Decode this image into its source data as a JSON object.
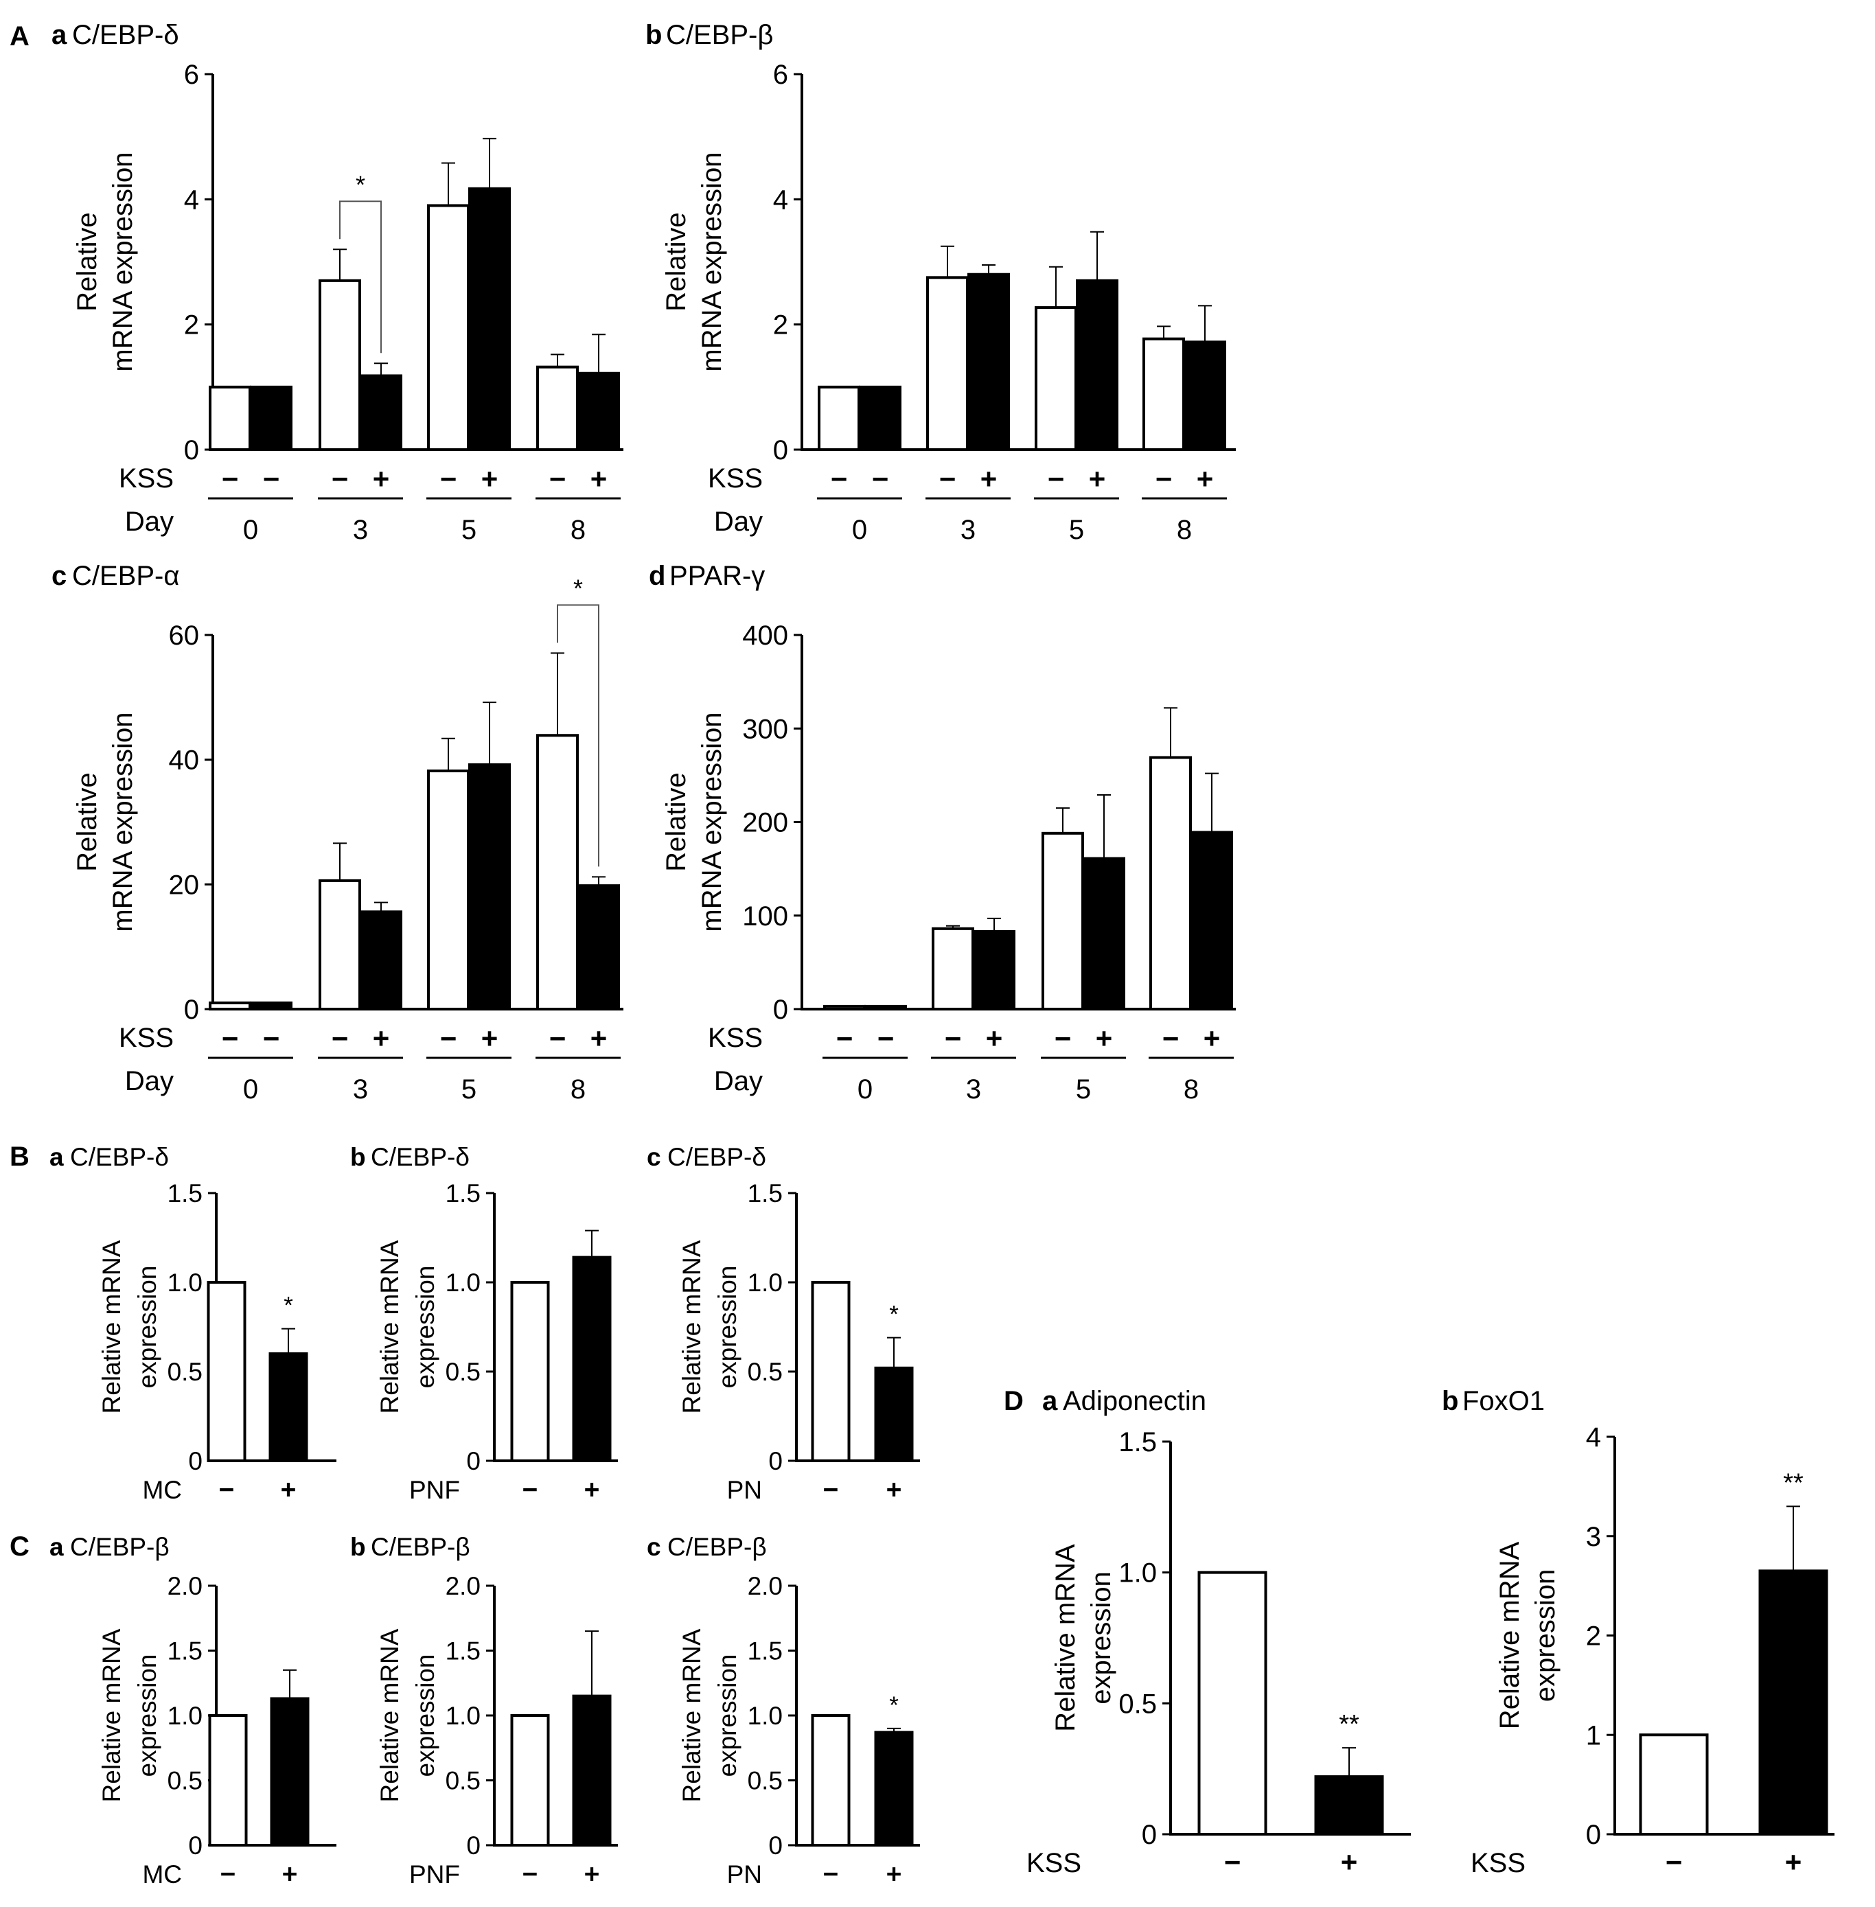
{
  "figure": {
    "group_labels": {
      "A": "A",
      "B": "B",
      "C": "C",
      "D": "D"
    },
    "kss_label": "KSS",
    "day_label": "Day",
    "minus": "−",
    "plus": "+",
    "significance": {
      "single": "*",
      "double": "**"
    }
  },
  "chart_data": [
    {
      "id": "Aa",
      "type": "bar",
      "layout": "timecourse",
      "panel_label": "a",
      "title": "C/EBP-δ",
      "ylabel": [
        "Relative",
        "mRNA expression"
      ],
      "ylim": [
        0,
        6
      ],
      "yticks": [
        "0",
        "2",
        "4",
        "6"
      ],
      "days": [
        "0",
        "3",
        "5",
        "8"
      ],
      "kss_signs": [
        [
          "−",
          "−"
        ],
        [
          "−",
          "+"
        ],
        [
          "−",
          "+"
        ],
        [
          "−",
          "+"
        ]
      ],
      "series": [
        {
          "name": "KSS −",
          "fill": "#ffffff",
          "values": [
            1.0,
            2.7,
            3.9,
            1.32
          ],
          "errors": [
            0,
            0.5,
            0.68,
            0.2
          ]
        },
        {
          "name": "KSS +",
          "fill": "#000000",
          "values": [
            1.0,
            1.18,
            4.17,
            1.22
          ],
          "errors": [
            0,
            0.2,
            0.8,
            0.62
          ]
        }
      ],
      "significance": [
        {
          "group": 1,
          "label": "*"
        }
      ]
    },
    {
      "id": "Ab",
      "type": "bar",
      "layout": "timecourse",
      "panel_label": "b",
      "title": "C/EBP-β",
      "ylabel": [
        "Relative",
        "mRNA expression"
      ],
      "ylim": [
        0,
        6
      ],
      "yticks": [
        "0",
        "2",
        "4",
        "6"
      ],
      "days": [
        "0",
        "3",
        "5",
        "8"
      ],
      "kss_signs": [
        [
          "−",
          "−"
        ],
        [
          "−",
          "+"
        ],
        [
          "−",
          "+"
        ],
        [
          "−",
          "+"
        ]
      ],
      "series": [
        {
          "name": "KSS −",
          "fill": "#ffffff",
          "values": [
            1.0,
            2.75,
            2.27,
            1.77
          ],
          "errors": [
            0,
            0.5,
            0.65,
            0.2
          ]
        },
        {
          "name": "KSS +",
          "fill": "#000000",
          "values": [
            1.0,
            2.8,
            2.7,
            1.72
          ],
          "errors": [
            0,
            0.15,
            0.78,
            0.58
          ]
        }
      ],
      "significance": []
    },
    {
      "id": "Ac",
      "type": "bar",
      "layout": "timecourse",
      "panel_label": "c",
      "title": "C/EBP-α",
      "ylabel": [
        "Relative",
        "mRNA expression"
      ],
      "ylim": [
        0,
        60
      ],
      "yticks": [
        "0",
        "20",
        "40",
        "60"
      ],
      "days": [
        "0",
        "3",
        "5",
        "8"
      ],
      "kss_signs": [
        [
          "−",
          "−"
        ],
        [
          "−",
          "+"
        ],
        [
          "−",
          "+"
        ],
        [
          "−",
          "+"
        ]
      ],
      "series": [
        {
          "name": "KSS −",
          "fill": "#ffffff",
          "values": [
            1.0,
            20.6,
            38.2,
            43.9
          ],
          "errors": [
            0,
            6.0,
            5.2,
            13.2
          ]
        },
        {
          "name": "KSS +",
          "fill": "#000000",
          "values": [
            1.0,
            15.6,
            39.2,
            19.8
          ],
          "errors": [
            0,
            1.5,
            10.0,
            1.4
          ]
        }
      ],
      "significance": [
        {
          "group": 3,
          "label": "*"
        }
      ]
    },
    {
      "id": "Ad",
      "type": "bar",
      "layout": "timecourse",
      "panel_label": "d",
      "title": "PPAR-γ",
      "ylabel": [
        "Relative",
        "mRNA expression"
      ],
      "ylim": [
        0,
        400
      ],
      "yticks": [
        "0",
        "100",
        "200",
        "300",
        "400"
      ],
      "days": [
        "0",
        "3",
        "5",
        "8"
      ],
      "kss_signs": [
        [
          "−",
          "−"
        ],
        [
          "−",
          "+"
        ],
        [
          "−",
          "+"
        ],
        [
          "−",
          "+"
        ]
      ],
      "series": [
        {
          "name": "KSS −",
          "fill": "#ffffff",
          "values": [
            3,
            86,
            188,
            269
          ],
          "errors": [
            0,
            3,
            27,
            53
          ]
        },
        {
          "name": "KSS +",
          "fill": "#000000",
          "values": [
            3,
            83,
            161,
            189
          ],
          "errors": [
            0,
            14,
            68,
            63
          ]
        }
      ],
      "significance": []
    },
    {
      "id": "Ba",
      "type": "bar",
      "layout": "pair",
      "panel_label": "a",
      "title": "C/EBP-δ",
      "ylabel": [
        "Relative mRNA",
        "expression"
      ],
      "ylim": [
        0,
        1.5
      ],
      "yticks": [
        "0",
        "0.5",
        "1.0",
        "1.5"
      ],
      "treatment": "MC",
      "categories": [
        "−",
        "+"
      ],
      "values": [
        1.0,
        0.6
      ],
      "errors": [
        0,
        0.14
      ],
      "fills": [
        "#ffffff",
        "#000000"
      ],
      "significance": {
        "index": 1,
        "label": "*"
      }
    },
    {
      "id": "Bb",
      "type": "bar",
      "layout": "pair",
      "panel_label": "b",
      "title": "C/EBP-δ",
      "ylabel": [
        "Relative mRNA",
        "expression"
      ],
      "ylim": [
        0,
        1.5
      ],
      "yticks": [
        "0",
        "0.5",
        "1.0",
        "1.5"
      ],
      "treatment": "PNF",
      "categories": [
        "−",
        "+"
      ],
      "values": [
        1.0,
        1.14
      ],
      "errors": [
        0,
        0.15
      ],
      "fills": [
        "#ffffff",
        "#000000"
      ],
      "significance": null
    },
    {
      "id": "Bc",
      "type": "bar",
      "layout": "pair",
      "panel_label": "c",
      "title": "C/EBP-δ",
      "ylabel": [
        "Relative mRNA",
        "expression"
      ],
      "ylim": [
        0,
        1.5
      ],
      "yticks": [
        "0",
        "0.5",
        "1.0",
        "1.5"
      ],
      "treatment": "PN",
      "categories": [
        "−",
        "+"
      ],
      "values": [
        1.0,
        0.52
      ],
      "errors": [
        0,
        0.17
      ],
      "fills": [
        "#ffffff",
        "#000000"
      ],
      "significance": {
        "index": 1,
        "label": "*"
      }
    },
    {
      "id": "Ca",
      "type": "bar",
      "layout": "pair",
      "panel_label": "a",
      "title": "C/EBP-β",
      "ylabel": [
        "Relative mRNA",
        "expression"
      ],
      "ylim": [
        0,
        2.0
      ],
      "yticks": [
        "0",
        "0.5",
        "1.0",
        "1.5",
        "2.0"
      ],
      "treatment": "MC",
      "categories": [
        "−",
        "+"
      ],
      "values": [
        1.0,
        1.13
      ],
      "errors": [
        0,
        0.22
      ],
      "fills": [
        "#ffffff",
        "#000000"
      ],
      "significance": null
    },
    {
      "id": "Cb",
      "type": "bar",
      "layout": "pair",
      "panel_label": "b",
      "title": "C/EBP-β",
      "ylabel": [
        "Relative mRNA",
        "expression"
      ],
      "ylim": [
        0,
        2.0
      ],
      "yticks": [
        "0",
        "0.5",
        "1.0",
        "1.5",
        "2.0"
      ],
      "treatment": "PNF",
      "categories": [
        "−",
        "+"
      ],
      "values": [
        1.0,
        1.15
      ],
      "errors": [
        0,
        0.5
      ],
      "fills": [
        "#ffffff",
        "#000000"
      ],
      "significance": null
    },
    {
      "id": "Cc",
      "type": "bar",
      "layout": "pair",
      "panel_label": "c",
      "title": "C/EBP-β",
      "ylabel": [
        "Relative mRNA",
        "expression"
      ],
      "ylim": [
        0,
        2.0
      ],
      "yticks": [
        "0",
        "0.5",
        "1.0",
        "1.5",
        "2.0"
      ],
      "treatment": "PN",
      "categories": [
        "−",
        "+"
      ],
      "values": [
        1.0,
        0.87
      ],
      "errors": [
        0,
        0.03
      ],
      "fills": [
        "#ffffff",
        "#000000"
      ],
      "significance": {
        "index": 1,
        "label": "*"
      }
    },
    {
      "id": "Da",
      "type": "bar",
      "layout": "pair",
      "panel_label": "a",
      "title": "Adiponectin",
      "ylabel": [
        "Relative mRNA",
        "expression"
      ],
      "ylim": [
        0,
        1.5
      ],
      "yticks": [
        "0",
        "0.5",
        "1.0",
        "1.5"
      ],
      "treatment": "KSS",
      "categories": [
        "−",
        "+"
      ],
      "values": [
        1.0,
        0.22
      ],
      "errors": [
        0,
        0.11
      ],
      "fills": [
        "#ffffff",
        "#000000"
      ],
      "significance": {
        "index": 1,
        "label": "**"
      }
    },
    {
      "id": "Db",
      "type": "bar",
      "layout": "pair",
      "panel_label": "b",
      "title": "FoxO1",
      "ylabel": [
        "Relative mRNA",
        "expression"
      ],
      "ylim": [
        0,
        4
      ],
      "yticks": [
        "0",
        "1",
        "2",
        "3",
        "4"
      ],
      "treatment": "KSS",
      "categories": [
        "−",
        "+"
      ],
      "values": [
        1.0,
        2.65
      ],
      "errors": [
        0,
        0.65
      ],
      "fills": [
        "#ffffff",
        "#000000"
      ],
      "significance": {
        "index": 1,
        "label": "**"
      }
    }
  ]
}
